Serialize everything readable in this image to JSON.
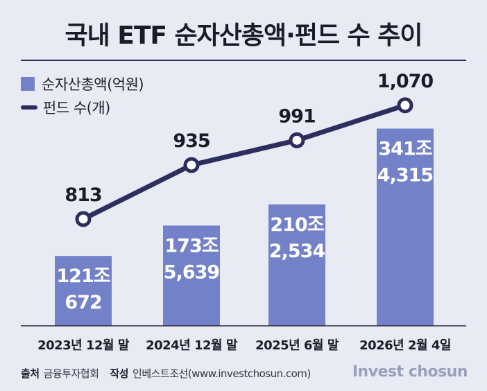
{
  "title": "국내 ETF 순자산총액·펀드 수 추이",
  "legend": {
    "bar_label": "순자산총액(억원)",
    "line_label": "펀드 수(개)"
  },
  "colors": {
    "background": "#e9ebf4",
    "bar": "#7381c8",
    "line": "#2c2f5c"
  },
  "chart_data": {
    "type": "bar+line",
    "title": "국내 ETF 순자산총액·펀드 수 추이",
    "categories": [
      "2023년 12월 말",
      "2024년 12월 말",
      "2025년 6월 말",
      "2026년 2월 4일"
    ],
    "series": [
      {
        "name": "순자산총액(억원)",
        "type": "bar",
        "values": [
          1210672,
          1735639,
          2102534,
          3414315
        ],
        "labels_top": [
          "121조",
          "173조",
          "210조",
          "341조"
        ],
        "labels_bottom": [
          "672",
          "5,639",
          "2,534",
          "4,315"
        ]
      },
      {
        "name": "펀드 수(개)",
        "type": "line",
        "values": [
          813,
          935,
          991,
          1070
        ],
        "labels": [
          "813",
          "935",
          "991",
          "1,070"
        ]
      }
    ],
    "bar_ylim": [
      0,
      3600000
    ],
    "line_ylim": [
      650,
      1120
    ]
  },
  "source": {
    "label": "출처",
    "value": "금융투자협회",
    "author_label": "작성",
    "author_value": "인베스트조선(www.investchosun.com)"
  },
  "brand": "Invest chosun"
}
